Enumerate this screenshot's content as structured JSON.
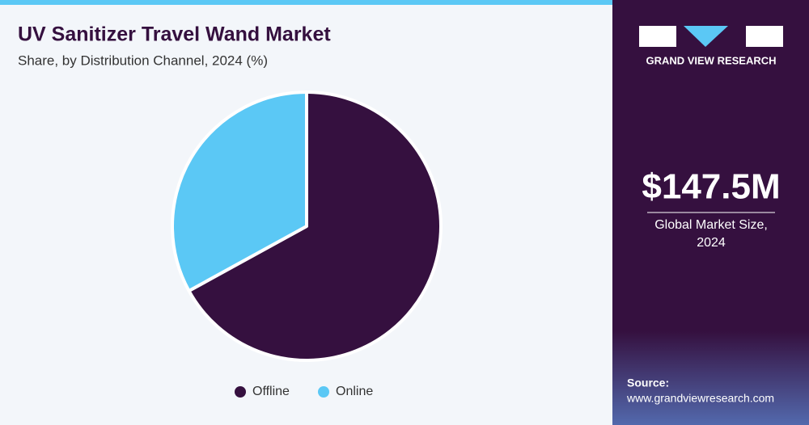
{
  "chart_data": {
    "type": "pie",
    "title": "UV Sanitizer Travel Wand Market",
    "subtitle": "Share, by Distribution Channel, 2024 (%)",
    "categories": [
      "Offline",
      "Online"
    ],
    "values": [
      67,
      33
    ],
    "colors": [
      "#35103f",
      "#5bc8f5"
    ],
    "legend": "bottom"
  },
  "sidebar": {
    "brand": "GRAND VIEW RESEARCH",
    "market_size": "$147.5M",
    "market_size_label": "Global Market Size, 2024",
    "source_label": "Source:",
    "source_url": "www.grandviewresearch.com"
  }
}
